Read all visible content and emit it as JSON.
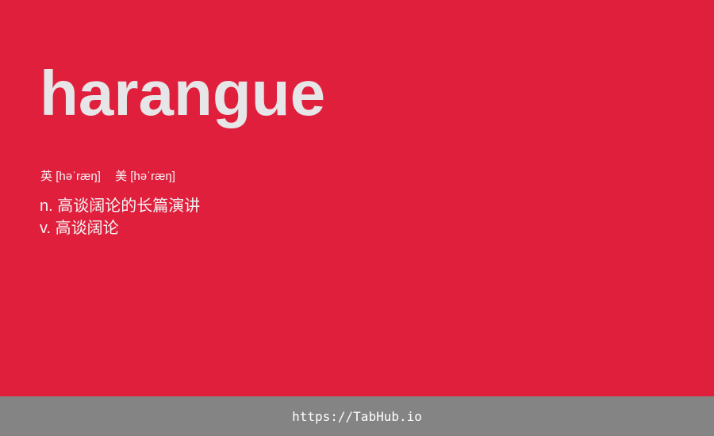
{
  "card": {
    "word": "harangue",
    "phonetics": {
      "uk_label": "英",
      "uk_ipa": "[həˈræŋ]",
      "us_label": "美",
      "us_ipa": "[həˈræŋ]"
    },
    "definitions": [
      {
        "pos": "n.",
        "meaning": "高谈阔论的长篇演讲"
      },
      {
        "pos": "v.",
        "meaning": "高谈阔论"
      }
    ]
  },
  "footer": {
    "url": "https://TabHub.io"
  },
  "colors": {
    "card_background": "#e01f3d",
    "word_text": "#e6e6e8",
    "footer_background": "#848484"
  }
}
